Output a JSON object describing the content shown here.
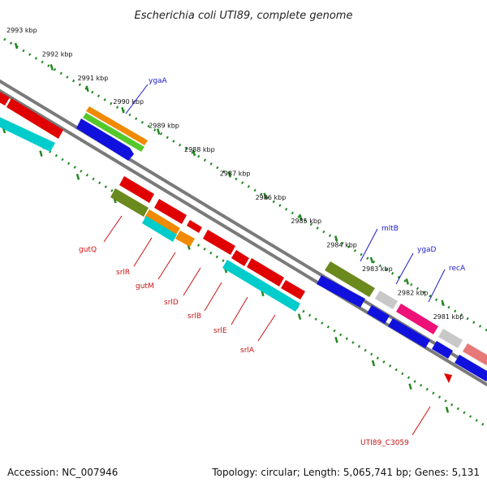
{
  "title": "Escherichia coli UTI89, complete genome",
  "footer": {
    "accession": "Accession: NC_007946",
    "topology": "Topology: circular; Length: 5,065,741 bp; Genes: 5,131"
  },
  "colors": {
    "backbone": "#7a7a7a",
    "tick_marks": "#228822",
    "forward_label": "#1a1acc",
    "reverse_label": "#cc1111"
  },
  "ticks": [
    "2993 kbp",
    "2992 kbp",
    "2991 kbp",
    "2990 kbp",
    "2989 kbp",
    "2988 kbp",
    "2987 kbp",
    "2986 kbp",
    "2985 kbp",
    "2984 kbp",
    "2983 kbp",
    "2982 kbp",
    "2981 kbp"
  ],
  "forward_genes": [
    "ygaA",
    "mltB",
    "ygaD",
    "recA"
  ],
  "reverse_genes": [
    "gutQ",
    "srlR",
    "gutM",
    "srlD",
    "srlB",
    "srlE",
    "srlA",
    "UTI89_C3059"
  ]
}
